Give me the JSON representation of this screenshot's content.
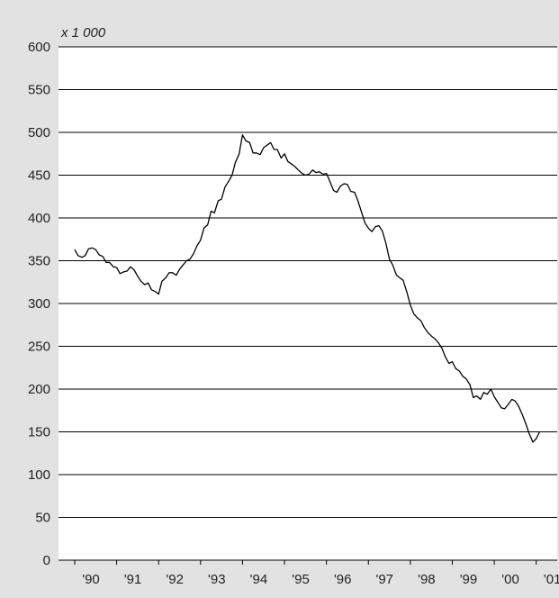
{
  "chart_data": {
    "type": "line",
    "unit_label": "x 1 000",
    "ylim": [
      0,
      600
    ],
    "y_ticks": [
      0,
      50,
      100,
      150,
      200,
      250,
      300,
      350,
      400,
      450,
      500,
      550,
      600
    ],
    "x_tick_labels": [
      "'90",
      "'91",
      "'92",
      "'93",
      "'94",
      "'95",
      "'96",
      "'97",
      "'98",
      "'99",
      "'00",
      "'01"
    ],
    "xlim": [
      1990,
      2001.5
    ],
    "grid": "horizontal",
    "legend": "none",
    "line_color": "#000000",
    "plot_background": "#ffffff",
    "frame_background": "#e2e2e2",
    "series": [
      {
        "x": [
          1990.0,
          1990.08,
          1990.17,
          1990.25,
          1990.33,
          1990.42,
          1990.5,
          1990.58,
          1990.67,
          1990.75,
          1990.83,
          1990.92,
          1991.0,
          1991.08,
          1991.17,
          1991.25,
          1991.33,
          1991.42,
          1991.5,
          1991.58,
          1991.67,
          1991.75,
          1991.83,
          1991.92,
          1992.0,
          1992.08,
          1992.17,
          1992.25,
          1992.33,
          1992.42,
          1992.5,
          1992.58,
          1992.67,
          1992.75,
          1992.83,
          1992.92,
          1993.0,
          1993.08,
          1993.17,
          1993.25,
          1993.33,
          1993.42,
          1993.5,
          1993.58,
          1993.67,
          1993.75,
          1993.83,
          1993.92,
          1994.0,
          1994.08,
          1994.17,
          1994.25,
          1994.33,
          1994.42,
          1994.5,
          1994.58,
          1994.67,
          1994.75,
          1994.83,
          1994.92,
          1995.0,
          1995.08,
          1995.17,
          1995.25,
          1995.33,
          1995.42,
          1995.5,
          1995.58,
          1995.67,
          1995.75,
          1995.83,
          1995.92,
          1996.0,
          1996.08,
          1996.17,
          1996.25,
          1996.33,
          1996.42,
          1996.5,
          1996.58,
          1996.67,
          1996.75,
          1996.83,
          1996.92,
          1997.0,
          1997.08,
          1997.17,
          1997.25,
          1997.33,
          1997.42,
          1997.5,
          1997.58,
          1997.67,
          1997.75,
          1997.83,
          1997.92,
          1998.0,
          1998.08,
          1998.17,
          1998.25,
          1998.33,
          1998.42,
          1998.5,
          1998.58,
          1998.67,
          1998.75,
          1998.83,
          1998.92,
          1999.0,
          1999.08,
          1999.17,
          1999.25,
          1999.33,
          1999.42,
          1999.5,
          1999.58,
          1999.67,
          1999.75,
          1999.83,
          1999.92,
          2000.0,
          2000.08,
          2000.17,
          2000.25,
          2000.33,
          2000.42,
          2000.5,
          2000.58,
          2000.67,
          2000.75,
          2000.83,
          2000.92,
          2001.0,
          2001.08
        ],
        "values": [
          363,
          356,
          354,
          356,
          364,
          365,
          363,
          357,
          355,
          348,
          348,
          343,
          342,
          335,
          337,
          338,
          343,
          339,
          332,
          326,
          322,
          324,
          316,
          314,
          311,
          326,
          330,
          336,
          336,
          333,
          340,
          345,
          350,
          352,
          358,
          368,
          374,
          388,
          392,
          408,
          406,
          420,
          422,
          436,
          443,
          450,
          465,
          475,
          497,
          490,
          488,
          476,
          476,
          474,
          482,
          485,
          488,
          480,
          480,
          470,
          475,
          466,
          463,
          460,
          456,
          452,
          450,
          451,
          456,
          453,
          454,
          451,
          452,
          443,
          432,
          430,
          437,
          440,
          439,
          431,
          430,
          420,
          408,
          394,
          388,
          384,
          390,
          391,
          385,
          370,
          352,
          345,
          333,
          330,
          327,
          313,
          298,
          288,
          283,
          280,
          272,
          266,
          262,
          259,
          254,
          248,
          238,
          230,
          232,
          224,
          221,
          215,
          212,
          205,
          190,
          192,
          188,
          196,
          194,
          200,
          191,
          185,
          178,
          177,
          182,
          188,
          186,
          180,
          170,
          160,
          148,
          138,
          142,
          150
        ]
      }
    ]
  }
}
